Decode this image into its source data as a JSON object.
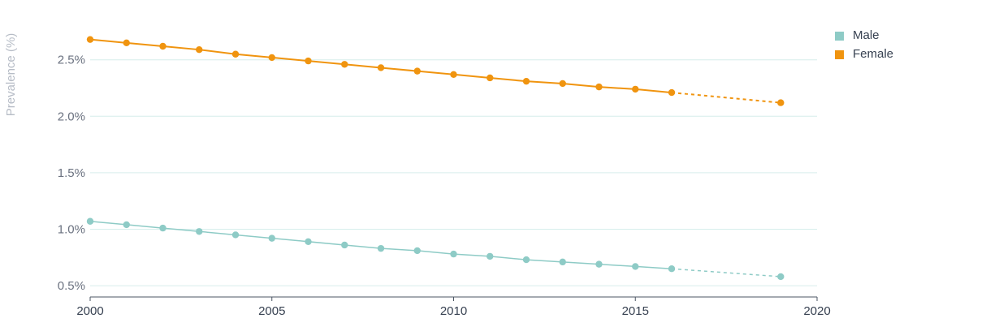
{
  "chart_data": {
    "type": "line",
    "ylabel": "Prevalence (%)",
    "xlim": [
      2000,
      2020
    ],
    "ylim": [
      0.4,
      2.85
    ],
    "x_ticks": [
      2000,
      2005,
      2010,
      2015,
      2020
    ],
    "y_ticks": [
      0.5,
      1.0,
      1.5,
      2.0,
      2.5
    ],
    "y_tick_labels": [
      "0.5%",
      "1.0%",
      "1.5%",
      "2.0%",
      "2.5%"
    ],
    "grid": "horizontal",
    "legend_position": "top-right",
    "series": [
      {
        "name": "Male",
        "color": "#8ecbc6",
        "x": [
          2000,
          2001,
          2002,
          2003,
          2004,
          2005,
          2006,
          2007,
          2008,
          2009,
          2010,
          2011,
          2012,
          2013,
          2014,
          2015,
          2016
        ],
        "values": [
          1.07,
          1.04,
          1.01,
          0.98,
          0.95,
          0.92,
          0.89,
          0.86,
          0.83,
          0.81,
          0.78,
          0.76,
          0.73,
          0.71,
          0.69,
          0.67,
          0.65
        ],
        "projection": {
          "x": [
            2016,
            2019
          ],
          "values": [
            0.65,
            0.58
          ]
        }
      },
      {
        "name": "Female",
        "color": "#f0940f",
        "x": [
          2000,
          2001,
          2002,
          2003,
          2004,
          2005,
          2006,
          2007,
          2008,
          2009,
          2010,
          2011,
          2012,
          2013,
          2014,
          2015,
          2016
        ],
        "values": [
          2.68,
          2.65,
          2.62,
          2.59,
          2.55,
          2.52,
          2.49,
          2.46,
          2.43,
          2.4,
          2.37,
          2.34,
          2.31,
          2.29,
          2.26,
          2.24,
          2.21
        ],
        "projection": {
          "x": [
            2016,
            2019
          ],
          "values": [
            2.21,
            2.12
          ]
        }
      }
    ]
  }
}
